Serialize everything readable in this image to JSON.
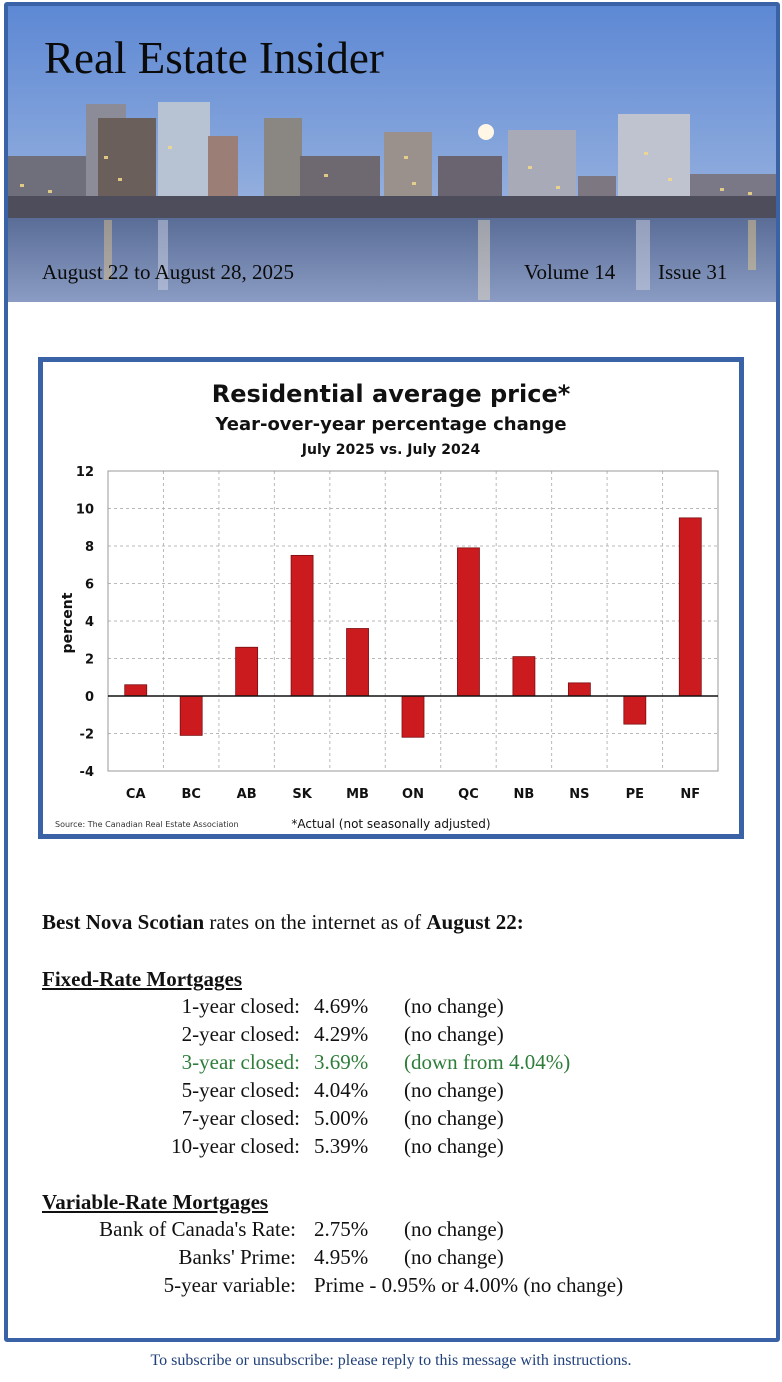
{
  "header": {
    "title": "Real Estate Insider",
    "date_range": "August 22 to August 28, 2025",
    "volume": "Volume 14",
    "issue": "Issue 31"
  },
  "chart_data": {
    "type": "bar",
    "title": "Residential average price*",
    "subtitle": "Year-over-year percentage change",
    "subtitle2": "July 2025 vs. July 2024",
    "ylabel": "percent",
    "xlabel": "",
    "ylim": [
      -4,
      12
    ],
    "yticks": [
      12,
      10,
      8,
      6,
      4,
      2,
      0,
      -2,
      -4
    ],
    "ytick_labels": [
      "12",
      "10",
      "8",
      "6",
      "4",
      "2",
      "0",
      "-2",
      "-4"
    ],
    "categories": [
      "CA",
      "BC",
      "AB",
      "SK",
      "MB",
      "ON",
      "QC",
      "NB",
      "NS",
      "PE",
      "NF"
    ],
    "values": [
      0.6,
      -2.1,
      2.6,
      7.5,
      3.6,
      -2.2,
      7.9,
      2.1,
      0.7,
      -1.5,
      9.5
    ],
    "grid": true,
    "bar_color": "#cc1b1f",
    "source": "Source: The Canadian Real Estate Association",
    "footnote": "*Actual (not seasonally adjusted)"
  },
  "rates": {
    "intro_bold1": "Best Nova Scotian",
    "intro_mid": " rates on the internet as of ",
    "intro_bold2": "August 22:",
    "fixed_title": "Fixed-Rate Mortgages",
    "fixed": [
      {
        "label": "1-year closed:",
        "value": "4.69%",
        "note": "(no change)"
      },
      {
        "label": "2-year closed:",
        "value": "4.29%",
        "note": "(no change)"
      },
      {
        "label": "3-year closed:",
        "value": "3.69%",
        "note": "(down from 4.04%)"
      },
      {
        "label": "5-year closed:",
        "value": "4.04%",
        "note": "(no change)"
      },
      {
        "label": "7-year closed:",
        "value": "5.00%",
        "note": "(no change)"
      },
      {
        "label": "10-year closed:",
        "value": "5.39%",
        "note": "(no change)"
      }
    ],
    "variable_title": "Variable-Rate Mortgages",
    "variable": [
      {
        "label": "Bank of Canada's Rate:",
        "value": "2.75%",
        "note": "(no change)"
      },
      {
        "label": "Banks' Prime:",
        "value": "4.95%",
        "note": "(no change)"
      },
      {
        "label": "5-year variable:",
        "value": "Prime - 0.95% or 4.00% (no change)",
        "note": ""
      }
    ],
    "highlight_color": "#2e7d3a"
  },
  "footer": {
    "text": "To subscribe or unsubscribe: please reply to this message with instructions."
  }
}
